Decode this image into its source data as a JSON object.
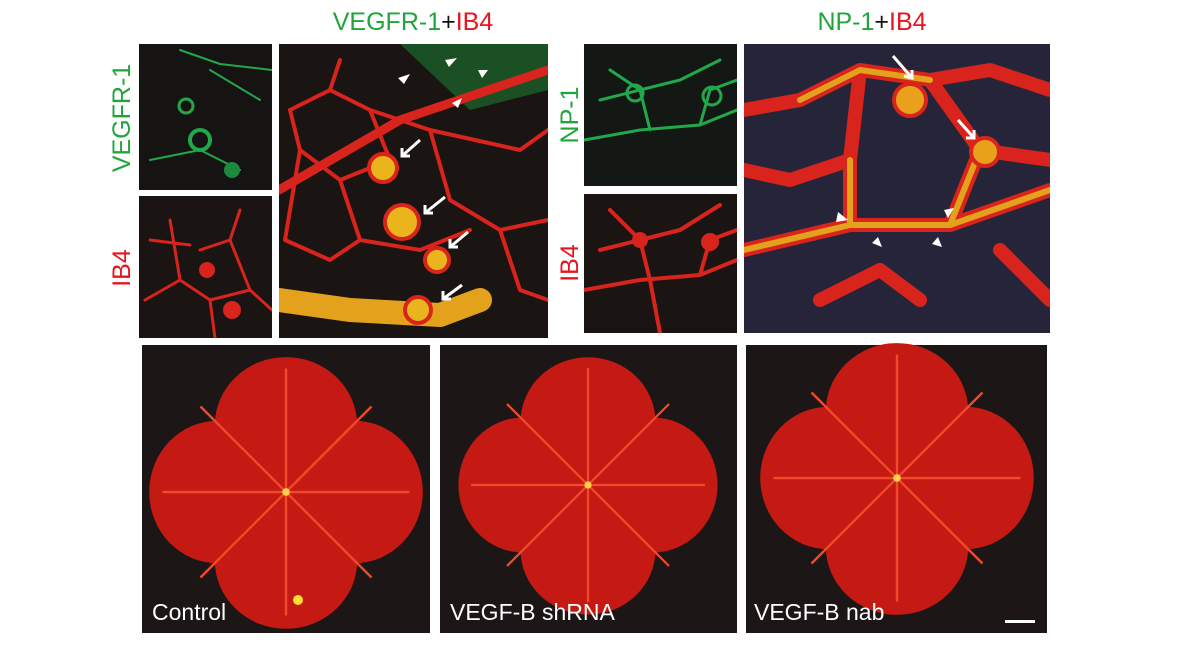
{
  "panel_a": {
    "title": [
      "VEGFR-1",
      "+",
      "IB4"
    ],
    "side_labels": [
      "VEGFR-1",
      "IB4"
    ]
  },
  "panel_b": {
    "title": [
      "NP-1",
      "+",
      "IB4"
    ],
    "side_labels": [
      "NP-1",
      "IB4"
    ]
  },
  "retinas": [
    "Control",
    "VEGF-B shRNA",
    "VEGF-B nab"
  ]
}
